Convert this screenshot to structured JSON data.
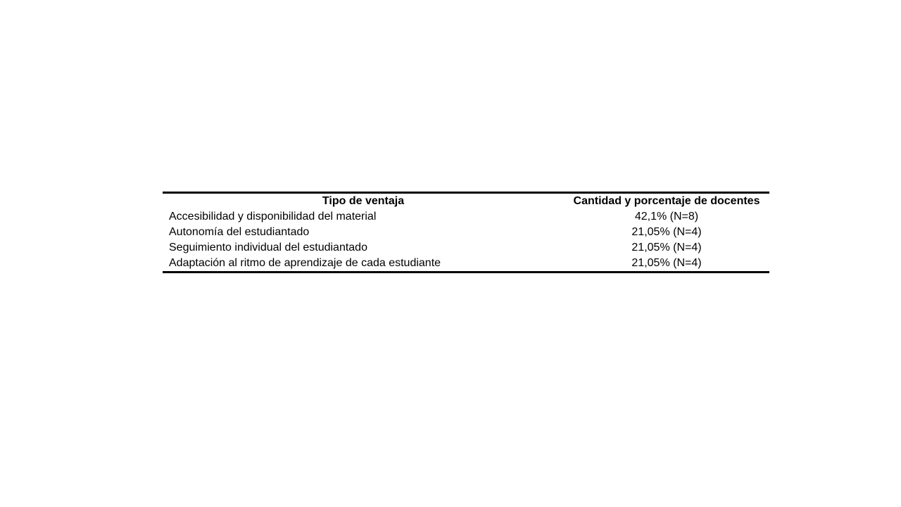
{
  "page": {
    "background": "#ffffff",
    "text_color": "#000000",
    "table_border_color": "#000000"
  },
  "table": {
    "columns": [
      {
        "label": "Tipo de ventaja"
      },
      {
        "label": "Cantidad y porcentaje de docentes"
      }
    ],
    "rows": [
      {
        "tipo": "Accesibilidad y disponibilidad del material",
        "valor": "42,1% (N=8)"
      },
      {
        "tipo": "Autonomía del estudiantado",
        "valor": "21,05% (N=4)"
      },
      {
        "tipo": "Seguimiento individual del estudiantado",
        "valor": "21,05% (N=4)"
      },
      {
        "tipo": "Adaptación al ritmo de aprendizaje de cada estudiante",
        "valor": "21,05% (N=4)"
      }
    ]
  },
  "chart_data": {
    "type": "table",
    "columns": [
      "Tipo de ventaja",
      "Cantidad y porcentaje de docentes"
    ],
    "rows": [
      [
        "Accesibilidad y disponibilidad del material",
        "42,1% (N=8)"
      ],
      [
        "Autonomía del estudiantado",
        "21,05% (N=4)"
      ],
      [
        "Seguimiento individual del estudiantado",
        "21,05% (N=4)"
      ],
      [
        "Adaptación al ritmo de aprendizaje de cada estudiante",
        "21,05% (N=4)"
      ]
    ]
  }
}
